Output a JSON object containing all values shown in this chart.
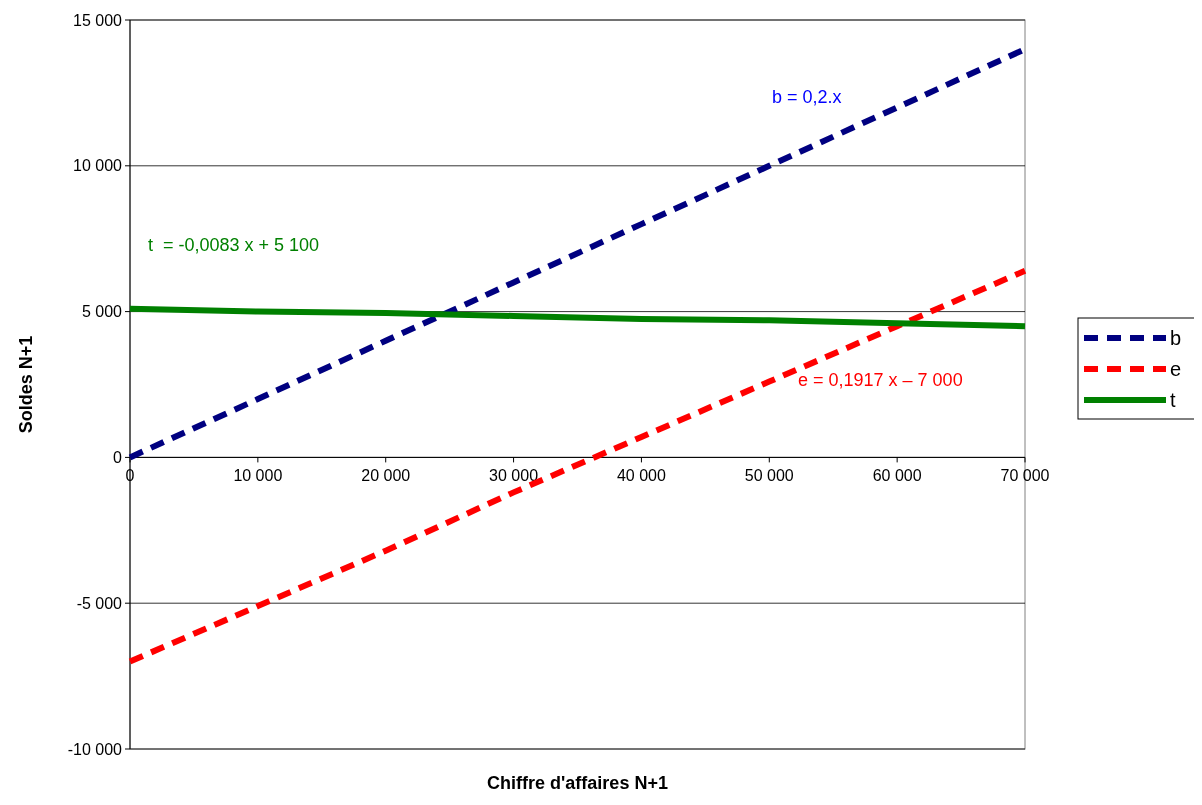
{
  "chart_data": {
    "type": "line",
    "xlabel": "Chiffre d'affaires N+1",
    "ylabel": "Soldes N+1",
    "x": [
      0,
      10000,
      20000,
      30000,
      40000,
      50000,
      60000,
      70000
    ],
    "series": [
      {
        "name": "b",
        "color": "#000080",
        "line_style": "dashed",
        "values": [
          0,
          2000,
          4000,
          6000,
          8000,
          10000,
          12000,
          14000
        ]
      },
      {
        "name": "e",
        "color": "#ff0000",
        "line_style": "dashed",
        "values": [
          -7000,
          -5100,
          -3200,
          -1200,
          700,
          2600,
          4500,
          6400
        ]
      },
      {
        "name": "t",
        "color": "#008000",
        "line_style": "solid",
        "values": [
          5100,
          5000,
          4950,
          4850,
          4750,
          4700,
          4600,
          4500
        ]
      }
    ],
    "xlim": [
      0,
      70000
    ],
    "xticks": [
      0,
      {
        "value": 10000,
        "label": "10 000"
      },
      {
        "value": 20000,
        "label": "20 000"
      },
      {
        "value": 30000,
        "label": "30 000"
      },
      {
        "value": 40000,
        "label": "40 000"
      },
      {
        "value": 50000,
        "label": "50 000"
      },
      {
        "value": 60000,
        "label": "60 000"
      },
      {
        "value": 70000,
        "label": "70 000"
      }
    ],
    "ylim": [
      -10000,
      15000
    ],
    "yticks": [
      {
        "value": -10000,
        "label": "-10 000"
      },
      {
        "value": -5000,
        "label": "-5 000"
      },
      0,
      {
        "value": 5000,
        "label": "5 000"
      },
      {
        "value": 10000,
        "label": "10 000"
      },
      {
        "value": 15000,
        "label": "15 000"
      }
    ],
    "grid": "y",
    "legend": "right",
    "marker": "none",
    "annotations": [
      "b = 0,2.x",
      "e = 0,1917 x – 7 000",
      "t  = -0,0083 x + 5 100"
    ]
  }
}
